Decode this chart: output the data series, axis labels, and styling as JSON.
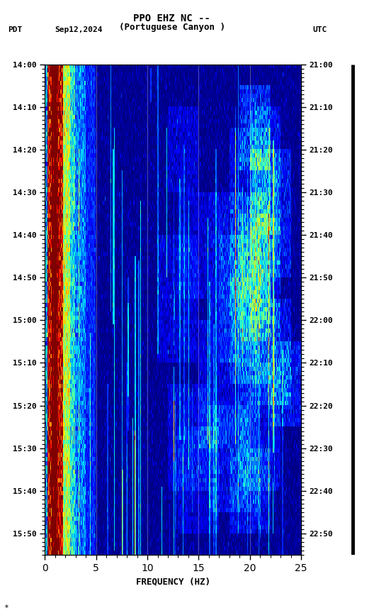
{
  "title_line1": "PPO EHZ NC --",
  "title_line2": "(Portuguese Canyon )",
  "date_label": "Sep12,2024",
  "pdt_label": "PDT",
  "utc_label": "UTC",
  "xlabel": "FREQUENCY (HZ)",
  "freq_min": 0,
  "freq_max": 25,
  "pdt_ticks": [
    "14:00",
    "14:10",
    "14:20",
    "14:30",
    "14:40",
    "14:50",
    "15:00",
    "15:10",
    "15:20",
    "15:30",
    "15:40",
    "15:50"
  ],
  "utc_ticks": [
    "21:00",
    "21:10",
    "21:20",
    "21:30",
    "21:40",
    "21:50",
    "22:00",
    "22:10",
    "22:20",
    "22:30",
    "22:40",
    "22:50"
  ],
  "background_color": "#ffffff",
  "colormap": "jet",
  "fig_width": 5.52,
  "fig_height": 8.64,
  "dpi": 100,
  "n_time": 115,
  "n_freq": 500,
  "seed": 42
}
